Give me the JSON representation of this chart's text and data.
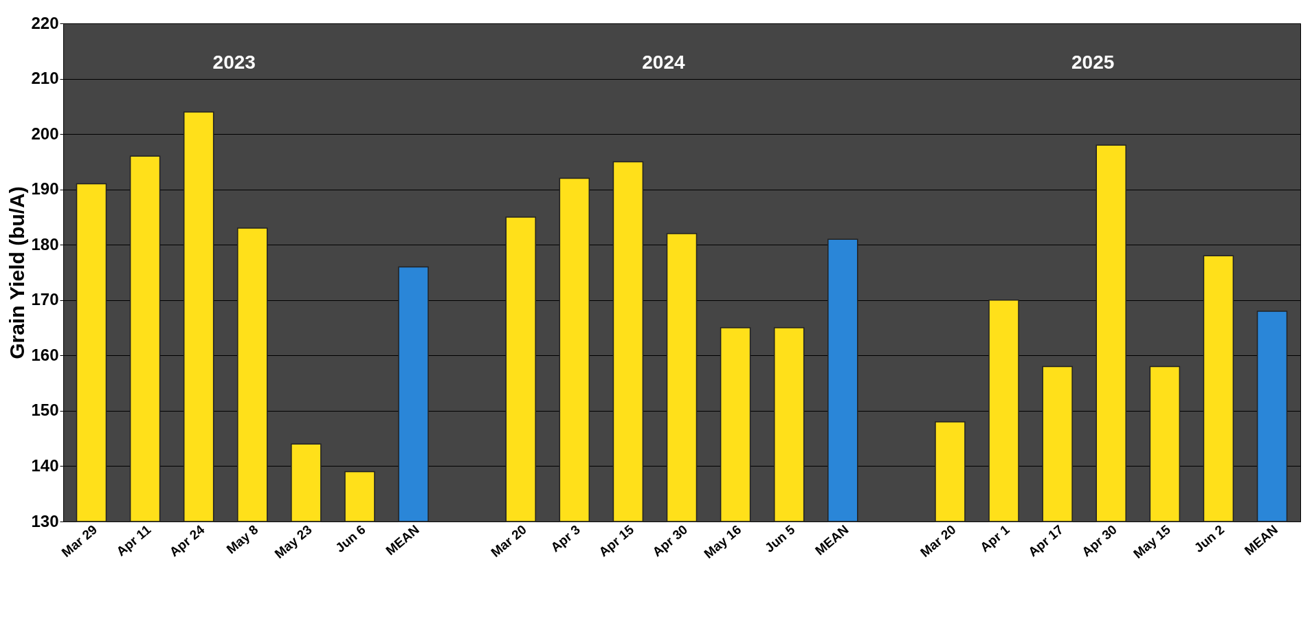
{
  "chart_data": {
    "type": "bar",
    "ylabel": "Grain Yield (bu/A)",
    "categories": [
      "Mar 29",
      "Apr 11",
      "Apr 24",
      "May 8",
      "May 23",
      "Jun 6",
      "MEAN",
      null,
      "Mar 20",
      "Apr 3",
      "Apr 15",
      "Apr 30",
      "May 16",
      "Jun 5",
      "MEAN",
      null,
      "Mar 20",
      "Apr 1",
      "Apr 17",
      "Apr 30",
      "May 15",
      "Jun 2",
      "MEAN"
    ],
    "values": [
      191,
      196,
      204,
      183,
      144,
      139,
      176,
      null,
      185,
      192,
      195,
      182,
      165,
      165,
      181,
      null,
      148,
      170,
      158,
      198,
      158,
      178,
      168
    ],
    "colors": [
      "#ffe01a",
      "#ffe01a",
      "#ffe01a",
      "#ffe01a",
      "#ffe01a",
      "#ffe01a",
      "#2a86d8",
      null,
      "#ffe01a",
      "#ffe01a",
      "#ffe01a",
      "#ffe01a",
      "#ffe01a",
      "#ffe01a",
      "#2a86d8",
      null,
      "#ffe01a",
      "#ffe01a",
      "#ffe01a",
      "#ffe01a",
      "#ffe01a",
      "#ffe01a",
      "#2a86d8"
    ],
    "annotations": [
      "2023",
      "2024",
      "2025"
    ],
    "ylim": [
      130,
      220
    ],
    "yticks": [
      130,
      140,
      150,
      160,
      170,
      180,
      190,
      200,
      210,
      220
    ],
    "grid": "y"
  }
}
